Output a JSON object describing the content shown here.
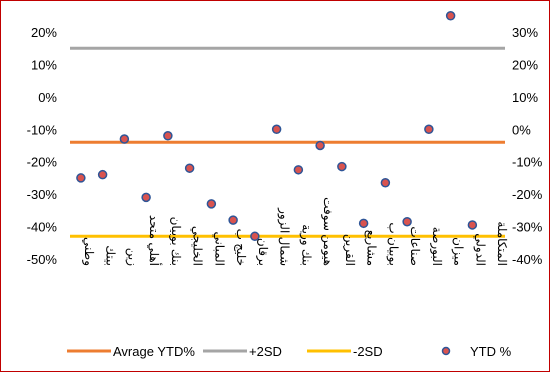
{
  "chart_data": {
    "type": "scatter",
    "title": "",
    "categories": [
      "وطني",
      "بيتك",
      "زين",
      "أهلي متحد",
      "بنك بوبيان",
      "الخليجي",
      "المباني",
      "خليج ب",
      "برقان",
      "شمال الزور",
      "بنك ورية",
      "هيومن سوفت",
      "القرين",
      "مشاريع",
      "بوبيان ب",
      "صناعات",
      "البورصة",
      "ميزان",
      "الدولي",
      "المتكاملة"
    ],
    "series": [
      {
        "name": "YTD %",
        "axis": "right",
        "values": [
          -15,
          -14,
          -3,
          -21,
          -2,
          -12,
          -23,
          -28,
          -33,
          0,
          -12.5,
          -5,
          -11.5,
          -29,
          -16.5,
          -28.5,
          0,
          35,
          -29.5,
          null
        ],
        "color": "#d9534f"
      }
    ],
    "reference_lines": [
      {
        "name": "Avrage YTD%",
        "axis": "right",
        "value": -4,
        "color": "#ed7d31"
      },
      {
        "name": "+2SD",
        "axis": "right",
        "value": 25,
        "color": "#a5a5a5"
      },
      {
        "name": "-2SD",
        "axis": "right",
        "value": -33,
        "color": "#ffc000"
      }
    ],
    "left_axis": {
      "ticks": [
        "20%",
        "10%",
        "0%",
        "-10%",
        "-20%",
        "-30%",
        "-40%",
        "-50%"
      ],
      "ylim": [
        -50,
        20
      ]
    },
    "right_axis": {
      "ticks": [
        "30%",
        "20%",
        "10%",
        "0%",
        "-10%",
        "-20%",
        "-30%",
        "-40%"
      ],
      "ylim": [
        -40,
        30
      ]
    },
    "legend": [
      "Avrage YTD%",
      "+2SD",
      "-2SD",
      "YTD %"
    ],
    "legend_position": "bottom",
    "grid": false
  }
}
